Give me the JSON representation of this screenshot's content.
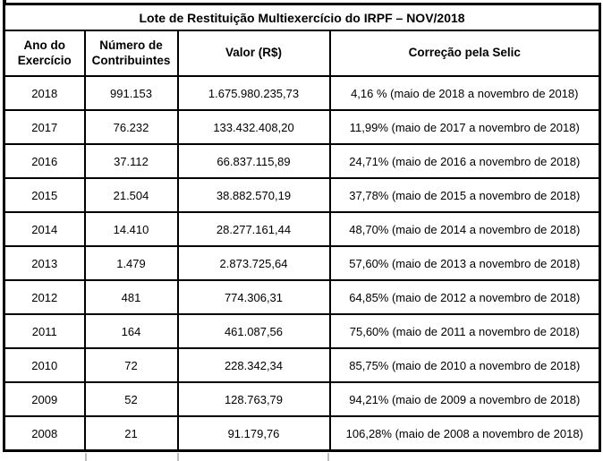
{
  "title": "Lote de Restituição Multiexercício do IRPF – NOV/2018",
  "columns": [
    "Ano do Exercício",
    "Número de Contribuintes",
    "Valor (R$)",
    "Correção pela Selic"
  ],
  "rows": [
    {
      "year": "2018",
      "contributors": "991.153",
      "value": "1.675.980.235,73",
      "selic": "4,16 % (maio de 2018 a novembro de 2018)"
    },
    {
      "year": "2017",
      "contributors": "76.232",
      "value": "133.432.408,20",
      "selic": "11,99% (maio de 2017 a novembro de 2018)"
    },
    {
      "year": "2016",
      "contributors": "37.112",
      "value": "66.837.115,89",
      "selic": "24,71% (maio de 2016 a novembro de 2018)"
    },
    {
      "year": "2015",
      "contributors": "21.504",
      "value": "38.882.570,19",
      "selic": "37,78% (maio de 2015 a novembro de 2018)"
    },
    {
      "year": "2014",
      "contributors": "14.410",
      "value": "28.277.161,44",
      "selic": "48,70% (maio de 2014 a novembro de 2018)"
    },
    {
      "year": "2013",
      "contributors": "1.479",
      "value": "2.873.725,64",
      "selic": "57,60% (maio de 2013 a novembro de 2018)"
    },
    {
      "year": "2012",
      "contributors": "481",
      "value": "774.306,31",
      "selic": "64,85% (maio de 2012 a  novembro de 2018)"
    },
    {
      "year": "2011",
      "contributors": "164",
      "value": "461.087,56",
      "selic": "75,60% (maio de 2011 a novembro de 2018)"
    },
    {
      "year": "2010",
      "contributors": "72",
      "value": "228.342,34",
      "selic": "85,75% (maio de 2010 a  novembro de 2018)"
    },
    {
      "year": "2009",
      "contributors": "52",
      "value": "128.763,79",
      "selic": "94,21% (maio de 2009 a novembro de 2018)"
    },
    {
      "year": "2008",
      "contributors": "21",
      "value": "91.179,76",
      "selic": "106,28% (maio de 2008 a novembro de 2018)"
    }
  ],
  "colors": {
    "text": "#000000",
    "background": "#ffffff",
    "border": "#000000",
    "artifact_gray": "#bdbdbd"
  }
}
